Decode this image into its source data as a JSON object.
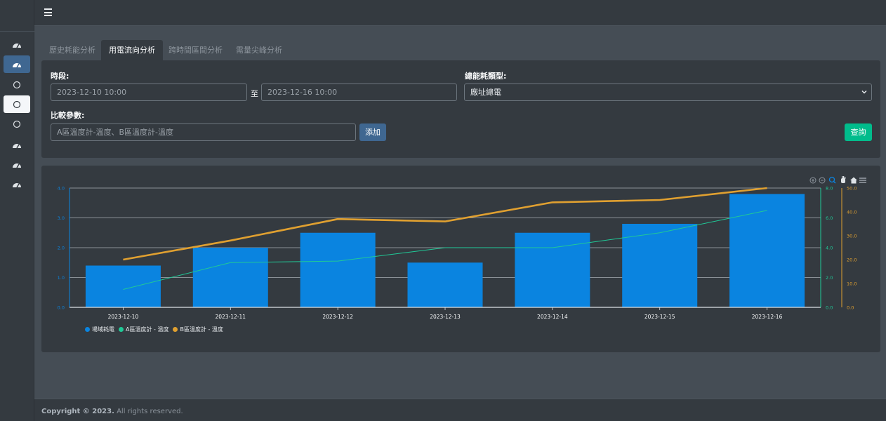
{
  "sidebar": {
    "items": [
      {
        "icon": "gauge-icon",
        "state": "normal"
      },
      {
        "icon": "gauge-icon",
        "state": "active-blue"
      },
      {
        "icon": "circle-icon",
        "state": "normal"
      },
      {
        "icon": "circle-icon",
        "state": "active-white"
      },
      {
        "icon": "circle-icon",
        "state": "normal"
      },
      {
        "icon": "gauge-icon",
        "state": "normal"
      },
      {
        "icon": "gauge-icon",
        "state": "normal"
      },
      {
        "icon": "gauge-icon",
        "state": "normal"
      }
    ]
  },
  "tabs": [
    {
      "label": "歷史耗能分析",
      "active": false
    },
    {
      "label": "用電流向分析",
      "active": true
    },
    {
      "label": "跨時間區間分析",
      "active": false
    },
    {
      "label": "需量尖峰分析",
      "active": false
    }
  ],
  "filter": {
    "period_label": "時段:",
    "start_value": "2023-12-10 10:00",
    "to_label": "至",
    "end_value": "2023-12-16 10:00",
    "type_label": "總能耗類型:",
    "type_value": "廠址總電",
    "compare_label": "比較參數:",
    "compare_value": "A區溫度計-溫度、B區溫度計-溫度",
    "add_label": "添加",
    "query_label": "查詢"
  },
  "colors": {
    "bar": "#0a84e0",
    "series_a": "#20c997",
    "series_b": "#e0a030"
  },
  "chart_data": {
    "type": "bar",
    "categories": [
      "2023-12-10",
      "2023-12-11",
      "2023-12-12",
      "2023-12-13",
      "2023-12-14",
      "2023-12-15",
      "2023-12-16"
    ],
    "series": [
      {
        "name": "場域耗電",
        "type": "bar",
        "axis": "left",
        "values": [
          1.4,
          2.0,
          2.5,
          1.5,
          2.5,
          2.8,
          3.8
        ]
      },
      {
        "name": "A區溫度計 - 溫度",
        "type": "line",
        "axis": "right1",
        "values": [
          1.2,
          3.0,
          3.1,
          4.0,
          4.0,
          5.0,
          6.5
        ]
      },
      {
        "name": "B區溫度計 - 溫度",
        "type": "line",
        "axis": "right2",
        "values": [
          20,
          28,
          37,
          36,
          44,
          45,
          50
        ]
      }
    ],
    "axes": {
      "left": {
        "min": 0,
        "max": 4,
        "ticks": [
          "0.0",
          "1.0",
          "2.0",
          "3.0",
          "4.0"
        ]
      },
      "right1": {
        "min": 0,
        "max": 8,
        "ticks": [
          "0.0",
          "2.0",
          "4.0",
          "6.0",
          "8.0"
        ]
      },
      "right2": {
        "min": 0,
        "max": 50,
        "ticks": [
          "0.0",
          "10.0",
          "20.0",
          "30.0",
          "40.0",
          "50.0"
        ]
      }
    },
    "grid": true,
    "legend_position": "bottom-left"
  },
  "toolbar_icons": [
    "zoom-in-icon",
    "zoom-out-icon",
    "zoom-select-icon",
    "pan-hand-icon",
    "reset-home-icon",
    "menu-icon"
  ],
  "footer": {
    "copyright": "Copyright © 2023.",
    "rights": " All rights reserved."
  }
}
